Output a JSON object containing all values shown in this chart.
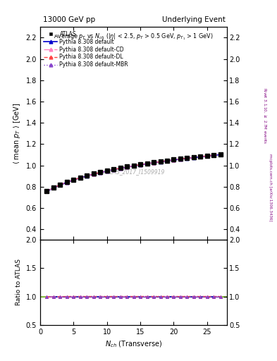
{
  "title_left": "13000 GeV pp",
  "title_right": "Underlying Event",
  "ylabel_main": "$\\langle$ mean $p_T$ $\\rangle$ [GeV]",
  "ylabel_ratio": "Ratio to ATLAS",
  "xlabel": "$N_{ch}$ (Transverse)",
  "annotation": "Average $p_T$ vs $N_{ch}$ ($|\\eta|$ < 2.5, $p_T$ > 0.5 GeV, $p_{T_1}$ > 1 GeV)",
  "watermark": "ATLAS_2017_I1509919",
  "right_label_top": "Rivet 3.1.10, $\\geq$ 2.7M events",
  "right_label_bottom": "mcplots.cern.ch [arXiv:1306.3436]",
  "ylim_main": [
    0.3,
    2.3
  ],
  "ylim_ratio": [
    0.5,
    2.0
  ],
  "yticks_main": [
    0.4,
    0.6,
    0.8,
    1.0,
    1.2,
    1.4,
    1.6,
    1.8,
    2.0,
    2.2
  ],
  "yticks_ratio": [
    0.5,
    1.0,
    1.5,
    2.0
  ],
  "xlim": [
    0,
    28
  ],
  "xticks": [
    0,
    5,
    10,
    15,
    20,
    25
  ],
  "atlas_x": [
    1,
    2,
    3,
    4,
    5,
    6,
    7,
    8,
    9,
    10,
    11,
    12,
    13,
    14,
    15,
    16,
    17,
    18,
    19,
    20,
    21,
    22,
    23,
    24,
    25,
    26,
    27
  ],
  "atlas_y": [
    0.76,
    0.793,
    0.82,
    0.845,
    0.867,
    0.886,
    0.905,
    0.921,
    0.936,
    0.95,
    0.963,
    0.975,
    0.987,
    0.998,
    1.008,
    1.018,
    1.028,
    1.037,
    1.046,
    1.054,
    1.062,
    1.07,
    1.077,
    1.084,
    1.091,
    1.098,
    1.104
  ],
  "pythia_default_x": [
    1,
    2,
    3,
    4,
    5,
    6,
    7,
    8,
    9,
    10,
    11,
    12,
    13,
    14,
    15,
    16,
    17,
    18,
    19,
    20,
    21,
    22,
    23,
    24,
    25,
    26,
    27
  ],
  "pythia_default_y": [
    0.755,
    0.788,
    0.815,
    0.84,
    0.862,
    0.882,
    0.9,
    0.917,
    0.932,
    0.946,
    0.959,
    0.972,
    0.983,
    0.994,
    1.005,
    1.015,
    1.024,
    1.033,
    1.042,
    1.05,
    1.058,
    1.066,
    1.073,
    1.08,
    1.087,
    1.094,
    1.101
  ],
  "pythia_cd_x": [
    1,
    2,
    3,
    4,
    5,
    6,
    7,
    8,
    9,
    10,
    11,
    12,
    13,
    14,
    15,
    16,
    17,
    18,
    19,
    20,
    21,
    22,
    23,
    24,
    25,
    26,
    27
  ],
  "pythia_cd_y": [
    0.756,
    0.789,
    0.816,
    0.841,
    0.863,
    0.883,
    0.901,
    0.918,
    0.933,
    0.947,
    0.96,
    0.973,
    0.984,
    0.995,
    1.006,
    1.016,
    1.025,
    1.034,
    1.043,
    1.051,
    1.059,
    1.067,
    1.074,
    1.081,
    1.088,
    1.095,
    1.102
  ],
  "pythia_dl_x": [
    1,
    2,
    3,
    4,
    5,
    6,
    7,
    8,
    9,
    10,
    11,
    12,
    13,
    14,
    15,
    16,
    17,
    18,
    19,
    20,
    21,
    22,
    23,
    24,
    25,
    26,
    27
  ],
  "pythia_dl_y": [
    0.757,
    0.79,
    0.817,
    0.842,
    0.864,
    0.884,
    0.902,
    0.919,
    0.934,
    0.948,
    0.961,
    0.974,
    0.985,
    0.996,
    1.007,
    1.017,
    1.026,
    1.035,
    1.044,
    1.052,
    1.06,
    1.068,
    1.075,
    1.082,
    1.089,
    1.096,
    1.103
  ],
  "pythia_mbr_x": [
    1,
    2,
    3,
    4,
    5,
    6,
    7,
    8,
    9,
    10,
    11,
    12,
    13,
    14,
    15,
    16,
    17,
    18,
    19,
    20,
    21,
    22,
    23,
    24,
    25,
    26,
    27
  ],
  "pythia_mbr_y": [
    0.756,
    0.789,
    0.816,
    0.841,
    0.863,
    0.883,
    0.901,
    0.918,
    0.933,
    0.947,
    0.96,
    0.973,
    0.984,
    0.995,
    1.006,
    1.016,
    1.025,
    1.034,
    1.043,
    1.051,
    1.059,
    1.067,
    1.074,
    1.081,
    1.088,
    1.095,
    1.102
  ],
  "color_default": "#0000cc",
  "color_cd": "#ff80c0",
  "color_dl": "#ff4444",
  "color_mbr": "#8844cc",
  "color_atlas": "#000000",
  "ratio_default": [
    1.0,
    1.0,
    1.0,
    1.0,
    1.0,
    1.0,
    1.0,
    1.0,
    1.0,
    1.0,
    1.0,
    1.0,
    1.0,
    1.0,
    1.0,
    1.0,
    1.0,
    1.0,
    1.0,
    1.0,
    1.0,
    1.0,
    1.0,
    1.0,
    1.0,
    1.0,
    1.0
  ],
  "ratio_cd": [
    0.993,
    0.996,
    0.998,
    0.999,
    1.0,
    1.0,
    1.0,
    1.0,
    1.0,
    1.0,
    1.0,
    1.0,
    1.0,
    1.0,
    1.0,
    1.0,
    1.0,
    1.0,
    1.0,
    1.0,
    1.0,
    1.0,
    1.0,
    1.0,
    1.0,
    1.0,
    1.0
  ],
  "ratio_dl": [
    0.995,
    0.997,
    0.999,
    1.0,
    1.0,
    1.0,
    1.0,
    1.0,
    1.0,
    1.0,
    1.0,
    1.0,
    1.0,
    1.0,
    1.0,
    1.0,
    1.0,
    1.0,
    1.0,
    1.0,
    1.0,
    1.0,
    1.0,
    1.0,
    1.0,
    1.0,
    1.0
  ],
  "ratio_mbr": [
    0.994,
    0.996,
    0.998,
    0.999,
    1.0,
    1.0,
    1.0,
    1.0,
    1.0,
    1.0,
    1.0,
    1.0,
    1.0,
    1.0,
    1.0,
    1.0,
    1.0,
    1.0,
    1.0,
    1.0,
    1.0,
    1.0,
    1.0,
    1.0,
    1.0,
    1.0,
    1.0
  ]
}
